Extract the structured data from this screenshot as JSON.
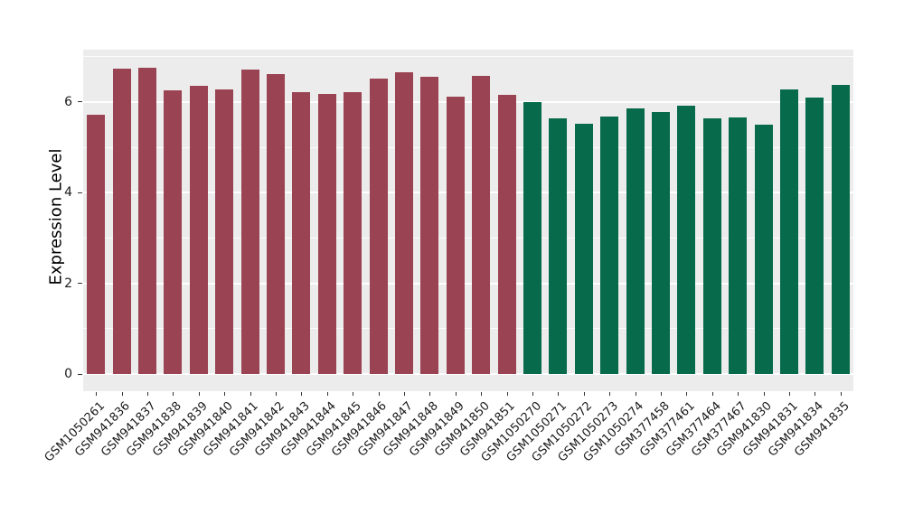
{
  "chart_data": {
    "type": "bar",
    "title": "",
    "xlabel": "",
    "ylabel": "Expression Level",
    "yticks": [
      0,
      2,
      4,
      6
    ],
    "minor_gridlines": [
      1,
      3,
      5,
      7
    ],
    "ylim": [
      -0.37,
      7.15
    ],
    "grid": true,
    "legend_position": "none",
    "plot_background": "#ECECEC",
    "grid_color": "#FFFFFF",
    "tick_color": "#333333",
    "groups": [
      {
        "name": "group-1",
        "color": "#9A4352"
      },
      {
        "name": "group-2",
        "color": "#066A4B"
      }
    ],
    "bars": [
      {
        "label": "GSM1050261",
        "value": 5.72,
        "group": 0
      },
      {
        "label": "GSM941836",
        "value": 6.73,
        "group": 0
      },
      {
        "label": "GSM941837",
        "value": 6.76,
        "group": 0
      },
      {
        "label": "GSM941838",
        "value": 6.26,
        "group": 0
      },
      {
        "label": "GSM941839",
        "value": 6.35,
        "group": 0
      },
      {
        "label": "GSM941840",
        "value": 6.28,
        "group": 0
      },
      {
        "label": "GSM941841",
        "value": 6.72,
        "group": 0
      },
      {
        "label": "GSM941842",
        "value": 6.62,
        "group": 0
      },
      {
        "label": "GSM941843",
        "value": 6.22,
        "group": 0
      },
      {
        "label": "GSM941844",
        "value": 6.17,
        "group": 0
      },
      {
        "label": "GSM941845",
        "value": 6.21,
        "group": 0
      },
      {
        "label": "GSM941846",
        "value": 6.52,
        "group": 0
      },
      {
        "label": "GSM941847",
        "value": 6.65,
        "group": 0
      },
      {
        "label": "GSM941848",
        "value": 6.55,
        "group": 0
      },
      {
        "label": "GSM941849",
        "value": 6.12,
        "group": 0
      },
      {
        "label": "GSM941850",
        "value": 6.58,
        "group": 0
      },
      {
        "label": "GSM941851",
        "value": 6.16,
        "group": 0
      },
      {
        "label": "GSM1050270",
        "value": 6.0,
        "group": 1
      },
      {
        "label": "GSM1050271",
        "value": 5.64,
        "group": 1
      },
      {
        "label": "GSM1050272",
        "value": 5.51,
        "group": 1
      },
      {
        "label": "GSM1050273",
        "value": 5.68,
        "group": 1
      },
      {
        "label": "GSM1050274",
        "value": 5.86,
        "group": 1
      },
      {
        "label": "GSM377458",
        "value": 5.77,
        "group": 1
      },
      {
        "label": "GSM377461",
        "value": 5.92,
        "group": 1
      },
      {
        "label": "GSM377464",
        "value": 5.63,
        "group": 1
      },
      {
        "label": "GSM377467",
        "value": 5.66,
        "group": 1
      },
      {
        "label": "GSM941830",
        "value": 5.49,
        "group": 1
      },
      {
        "label": "GSM941831",
        "value": 6.28,
        "group": 1
      },
      {
        "label": "GSM941834",
        "value": 6.1,
        "group": 1
      },
      {
        "label": "GSM941835",
        "value": 6.38,
        "group": 1
      }
    ]
  }
}
